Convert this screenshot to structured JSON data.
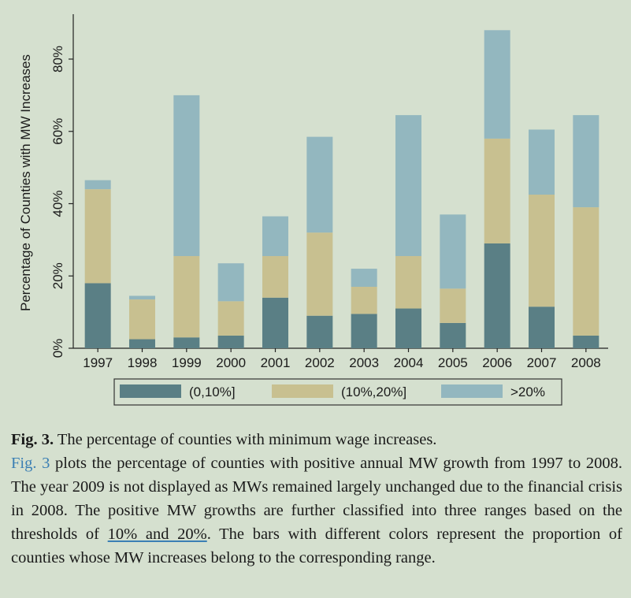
{
  "chart_data": {
    "type": "bar",
    "stacked": true,
    "categories": [
      "1997",
      "1998",
      "1999",
      "2000",
      "2001",
      "2002",
      "2003",
      "2004",
      "2005",
      "2006",
      "2007",
      "2008"
    ],
    "series": [
      {
        "name": "(0,10%]",
        "color": "#5a7f85",
        "values": [
          18,
          2.5,
          3,
          3.5,
          14,
          9,
          9.5,
          11,
          7,
          29,
          11.5,
          3.5
        ]
      },
      {
        "name": "(10%,20%]",
        "color": "#c8c090",
        "values": [
          26,
          11,
          22.5,
          9.5,
          11.5,
          23,
          7.5,
          14.5,
          9.5,
          29,
          31,
          35.5
        ]
      },
      {
        "name": ">20%",
        "color": "#93b7bf",
        "values": [
          2.5,
          1,
          44.5,
          10.5,
          11,
          26.5,
          5,
          39,
          20.5,
          30,
          18,
          25.5
        ]
      }
    ],
    "ylabel": "Percentage of Counties with MW Increases",
    "ylim": [
      0,
      90
    ],
    "yticks": [
      "0%",
      "20%",
      "40%",
      "60%",
      "80%"
    ],
    "ytick_values": [
      0,
      20,
      40,
      60,
      80
    ],
    "legend_position": "bottom",
    "grid": false
  },
  "caption": {
    "fig_label": "Fig. 3.",
    "title": " The percentage of counties with minimum wage increases.",
    "ref": "Fig. 3",
    "text1": " plots the percentage of counties with positive annual MW growth from 1997 to 2008. The year 2009 is not displayed as MWs remained largely un­changed due to the financial crisis in 2008. The positive MW growths are further classified into three ranges based on the thresholds of ",
    "link": "10% and 20%",
    "text2": ". The bars with different colors represent the proportion of counties whose MW increases belong to the corresponding range."
  }
}
